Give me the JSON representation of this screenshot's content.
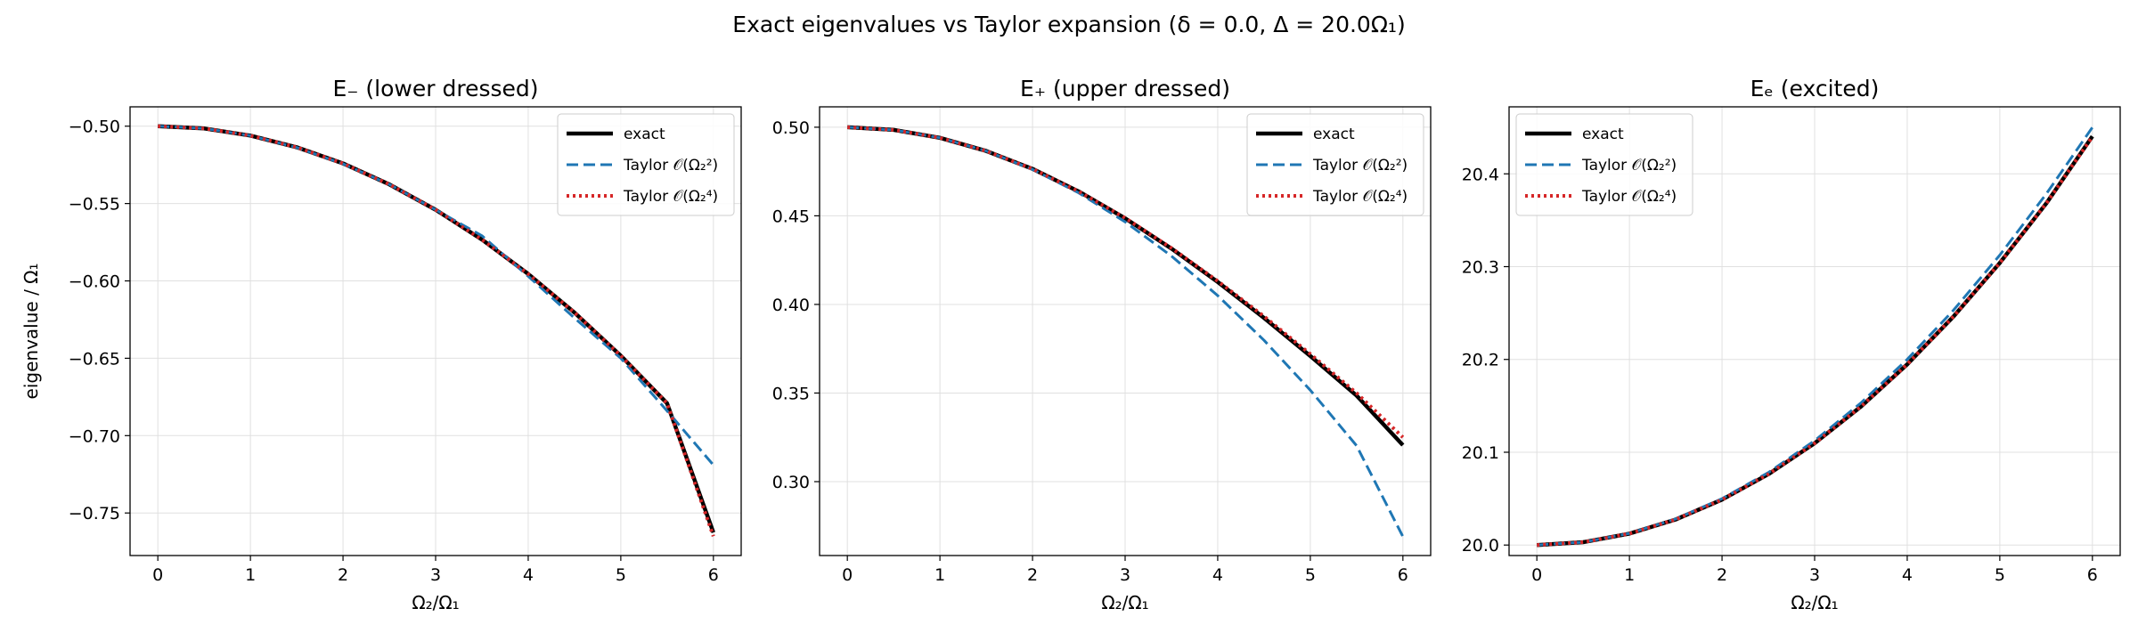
{
  "figure": {
    "suptitle": "Exact eigenvalues vs Taylor expansion (δ = 0.0, Δ = 20.0Ω₁)"
  },
  "chart_data": [
    {
      "type": "line",
      "title": "E₋ (lower dressed)",
      "xlabel": "Ω₂/Ω₁",
      "ylabel": "eigenvalue / Ω₁",
      "xlim": [
        -0.3,
        6.3
      ],
      "ylim": [
        -0.7775,
        -0.4875
      ],
      "xticks": [
        "0",
        "1",
        "2",
        "3",
        "4",
        "5",
        "6"
      ],
      "yticks": [
        "-0.50",
        "-0.55",
        "-0.60",
        "-0.65",
        "-0.70",
        "-0.75"
      ],
      "grid": true,
      "legend": "top-right",
      "x": [
        0,
        0.5,
        1,
        1.5,
        2,
        2.5,
        3,
        3.5,
        4,
        4.5,
        5,
        5.5,
        6
      ],
      "series": [
        {
          "name": "exact",
          "color": "#000000",
          "style": "solid",
          "values": [
            -0.5,
            -0.5015,
            -0.5061,
            -0.5136,
            -0.5241,
            -0.5376,
            -0.554,
            -0.5733,
            -0.5955,
            -0.6205,
            -0.6484,
            -0.6791,
            -0.7626
          ]
        },
        {
          "name": "Taylor 𝒪(Ω₂²)",
          "color": "#1f77b4",
          "style": "dashed",
          "values": [
            -0.5,
            -0.5015,
            -0.5061,
            -0.5138,
            -0.5243,
            -0.5376,
            -0.554,
            -0.5708,
            -0.597,
            -0.624,
            -0.65,
            -0.684,
            -0.719
          ]
        },
        {
          "name": "Taylor 𝒪(Ω₂⁴)",
          "color": "#d62728",
          "style": "dotted",
          "values": [
            -0.5,
            -0.5015,
            -0.5061,
            -0.5136,
            -0.5241,
            -0.5376,
            -0.554,
            -0.5733,
            -0.5955,
            -0.6205,
            -0.6484,
            -0.6791,
            -0.765
          ]
        }
      ]
    },
    {
      "type": "line",
      "title": "E₊ (upper dressed)",
      "xlabel": "Ω₂/Ω₁",
      "ylabel": "",
      "xlim": [
        -0.3,
        6.3
      ],
      "ylim": [
        0.2583,
        0.5115
      ],
      "xticks": [
        "0",
        "1",
        "2",
        "3",
        "4",
        "5",
        "6"
      ],
      "yticks": [
        "0.50",
        "0.45",
        "0.40",
        "0.35",
        "0.30"
      ],
      "grid": true,
      "legend": "top-right",
      "x": [
        0,
        0.5,
        1,
        1.5,
        2,
        2.5,
        3,
        3.5,
        4,
        4.5,
        5,
        5.5,
        6
      ],
      "series": [
        {
          "name": "exact",
          "color": "#000000",
          "style": "solid",
          "values": [
            0.5,
            0.4985,
            0.494,
            0.4866,
            0.4765,
            0.4637,
            0.4486,
            0.4315,
            0.4127,
            0.3924,
            0.3709,
            0.3486,
            0.3206
          ]
        },
        {
          "name": "Taylor 𝒪(Ω₂²)",
          "color": "#1f77b4",
          "style": "dashed",
          "values": [
            0.5,
            0.4985,
            0.494,
            0.4866,
            0.4762,
            0.4629,
            0.4466,
            0.4273,
            0.405,
            0.3798,
            0.3516,
            0.3203,
            0.269
          ]
        },
        {
          "name": "Taylor 𝒪(Ω₂⁴)",
          "color": "#d62728",
          "style": "dotted",
          "values": [
            0.5,
            0.4985,
            0.494,
            0.4866,
            0.4765,
            0.4637,
            0.4488,
            0.4318,
            0.4132,
            0.3933,
            0.372,
            0.35,
            0.325
          ]
        }
      ]
    },
    {
      "type": "line",
      "title": "Eₑ (excited)",
      "xlabel": "Ω₂/Ω₁",
      "ylabel": "",
      "xlim": [
        -0.3,
        6.3
      ],
      "ylim": [
        19.9887,
        20.4722
      ],
      "xticks": [
        "0",
        "1",
        "2",
        "3",
        "4",
        "5",
        "6"
      ],
      "yticks": [
        "20.0",
        "20.1",
        "20.2",
        "20.3",
        "20.4"
      ],
      "grid": true,
      "legend": "top-left",
      "x": [
        0,
        0.5,
        1,
        1.5,
        2,
        2.5,
        3,
        3.5,
        4,
        4.5,
        5,
        5.5,
        6
      ],
      "series": [
        {
          "name": "exact",
          "color": "#000000",
          "style": "solid",
          "values": [
            20.0,
            20.0031,
            20.0123,
            20.0276,
            20.0489,
            20.0763,
            20.1097,
            20.1492,
            20.1947,
            20.2463,
            20.304,
            20.3678,
            20.4404
          ]
        },
        {
          "name": "Taylor 𝒪(Ω₂²)",
          "color": "#1f77b4",
          "style": "dashed",
          "values": [
            20.0,
            20.0031,
            20.0125,
            20.0281,
            20.05,
            20.0781,
            20.1125,
            20.1531,
            20.2,
            20.2531,
            20.3125,
            20.3781,
            20.45
          ]
        },
        {
          "name": "Taylor 𝒪(Ω₂⁴)",
          "color": "#d62728",
          "style": "dotted",
          "values": [
            20.0,
            20.0031,
            20.0123,
            20.0276,
            20.0489,
            20.0763,
            20.1097,
            20.1492,
            20.1947,
            20.2463,
            20.304,
            20.3678,
            20.44
          ]
        }
      ]
    }
  ]
}
